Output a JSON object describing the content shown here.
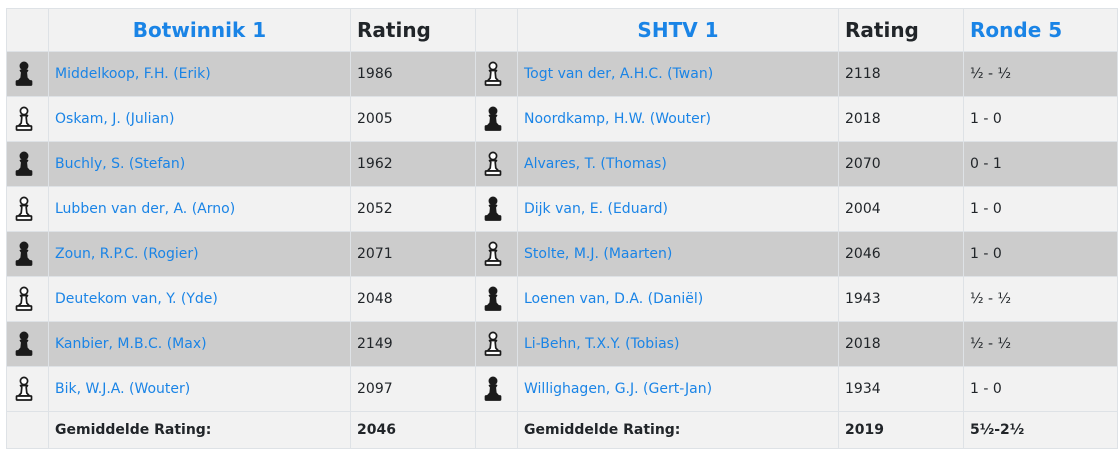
{
  "header": {
    "home_team": "Botwinnik 1",
    "home_rating_label": "Rating",
    "away_team": "SHTV 1",
    "away_rating_label": "Rating",
    "round": "Ronde 5"
  },
  "icons": {
    "white_pawn": "white-pawn-icon",
    "black_pawn": "black-pawn-icon"
  },
  "colors": {
    "link": "#1a84e6",
    "row_dark": "#cccccc",
    "row_light": "#f2f2f2"
  },
  "boards": [
    {
      "home_color": "black",
      "home_player": "Middelkoop, F.H. (Erik)",
      "home_rating": "1986",
      "away_color": "white",
      "away_player": "Togt van der, A.H.C. (Twan)",
      "away_rating": "2118",
      "result": "½ - ½"
    },
    {
      "home_color": "white",
      "home_player": "Oskam, J. (Julian)",
      "home_rating": "2005",
      "away_color": "black",
      "away_player": "Noordkamp, H.W. (Wouter)",
      "away_rating": "2018",
      "result": "1 - 0"
    },
    {
      "home_color": "black",
      "home_player": "Buchly, S. (Stefan)",
      "home_rating": "1962",
      "away_color": "white",
      "away_player": "Alvares, T. (Thomas)",
      "away_rating": "2070",
      "result": "0 - 1"
    },
    {
      "home_color": "white",
      "home_player": "Lubben van der, A. (Arno)",
      "home_rating": "2052",
      "away_color": "black",
      "away_player": "Dijk van, E. (Eduard)",
      "away_rating": "2004",
      "result": "1 - 0"
    },
    {
      "home_color": "black",
      "home_player": "Zoun, R.P.C. (Rogier)",
      "home_rating": "2071",
      "away_color": "white",
      "away_player": "Stolte, M.J. (Maarten)",
      "away_rating": "2046",
      "result": "1 - 0"
    },
    {
      "home_color": "white",
      "home_player": "Deutekom van, Y. (Yde)",
      "home_rating": "2048",
      "away_color": "black",
      "away_player": "Loenen van, D.A. (Daniël)",
      "away_rating": "1943",
      "result": "½ - ½"
    },
    {
      "home_color": "black",
      "home_player": "Kanbier, M.B.C. (Max)",
      "home_rating": "2149",
      "away_color": "white",
      "away_player": "Li-Behn, T.X.Y. (Tobias)",
      "away_rating": "2018",
      "result": "½ - ½"
    },
    {
      "home_color": "white",
      "home_player": "Bik, W.J.A. (Wouter)",
      "home_rating": "2097",
      "away_color": "black",
      "away_player": "Willighagen, G.J. (Gert-Jan)",
      "away_rating": "1934",
      "result": "1 - 0"
    }
  ],
  "footer": {
    "home_avg_label": "Gemiddelde Rating:",
    "home_avg": "2046",
    "away_avg_label": "Gemiddelde Rating:",
    "away_avg": "2019",
    "total_score": "5½-2½"
  }
}
